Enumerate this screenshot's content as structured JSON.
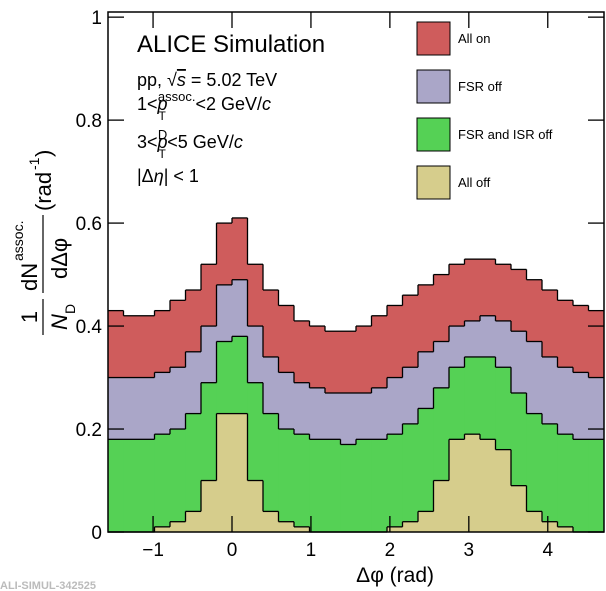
{
  "chart_data": {
    "type": "step-histogram",
    "xlabel": "Δφ (rad)",
    "ylabel_parts": [
      "1",
      "N",
      "D",
      "dN",
      "assoc.",
      "dΔφ",
      "(rad",
      "-1",
      ")"
    ],
    "annotations": [
      [
        "ALICE Simulation"
      ],
      [
        "pp, ",
        "√",
        "s",
        " = 5.02 TeV"
      ],
      [
        "1<",
        "p",
        "T",
        "assoc.",
        "<2 GeV/",
        "c"
      ],
      [
        "3<",
        "p",
        "T",
        "D",
        "<5 GeV/",
        "c"
      ],
      [
        "|Δ",
        "η",
        "| < 1"
      ]
    ],
    "footer": "ALI-SIMUL-342525",
    "bins": [
      -1.5708,
      -1.3744,
      -1.1781,
      -0.9817,
      -0.7854,
      -0.589,
      -0.3927,
      -0.1963,
      0,
      0.1963,
      0.3927,
      0.589,
      0.7854,
      0.9817,
      1.1781,
      1.3744,
      1.5708,
      1.7671,
      1.9635,
      2.1598,
      2.3562,
      2.5525,
      2.7489,
      2.9452,
      3.1416,
      3.3379,
      3.5343,
      3.7306,
      3.927,
      4.1233,
      4.3197,
      4.516,
      4.7124
    ],
    "series": [
      {
        "name": "All on",
        "color": "#cf5c5c",
        "values": [
          0.43,
          0.42,
          0.42,
          0.43,
          0.45,
          0.47,
          0.52,
          0.6,
          0.61,
          0.52,
          0.47,
          0.44,
          0.41,
          0.4,
          0.39,
          0.39,
          0.4,
          0.42,
          0.44,
          0.46,
          0.48,
          0.5,
          0.52,
          0.53,
          0.53,
          0.52,
          0.51,
          0.49,
          0.47,
          0.45,
          0.44,
          0.43
        ]
      },
      {
        "name": "FSR off",
        "color": "#aaa6c8",
        "values": [
          0.3,
          0.3,
          0.3,
          0.31,
          0.32,
          0.35,
          0.4,
          0.48,
          0.49,
          0.4,
          0.34,
          0.31,
          0.29,
          0.28,
          0.27,
          0.27,
          0.27,
          0.28,
          0.3,
          0.32,
          0.35,
          0.37,
          0.4,
          0.41,
          0.42,
          0.41,
          0.39,
          0.37,
          0.34,
          0.32,
          0.31,
          0.3
        ]
      },
      {
        "name": "FSR and ISR off",
        "color": "#55d155",
        "values": [
          0.18,
          0.18,
          0.18,
          0.19,
          0.2,
          0.23,
          0.29,
          0.37,
          0.38,
          0.29,
          0.23,
          0.2,
          0.19,
          0.18,
          0.18,
          0.17,
          0.18,
          0.18,
          0.19,
          0.21,
          0.24,
          0.28,
          0.32,
          0.34,
          0.34,
          0.32,
          0.27,
          0.23,
          0.21,
          0.19,
          0.18,
          0.18
        ]
      },
      {
        "name": "All off",
        "color": "#d6cd8c",
        "values": [
          0,
          0,
          0,
          0.01,
          0.02,
          0.04,
          0.1,
          0.23,
          0.23,
          0.1,
          0.04,
          0.02,
          0.01,
          0,
          0,
          0,
          0,
          0,
          0.01,
          0.02,
          0.04,
          0.1,
          0.18,
          0.19,
          0.18,
          0.16,
          0.09,
          0.04,
          0.02,
          0.01,
          0,
          0
        ]
      }
    ],
    "xlim": [
      -1.5708,
      4.7124
    ],
    "ylim": [
      0,
      1.01
    ],
    "xticks": [
      {
        "value": -1,
        "label": "−1"
      },
      0,
      1,
      2,
      3,
      4
    ],
    "yticks": [
      0,
      0.2,
      0.4,
      0.6,
      0.8,
      1
    ]
  }
}
